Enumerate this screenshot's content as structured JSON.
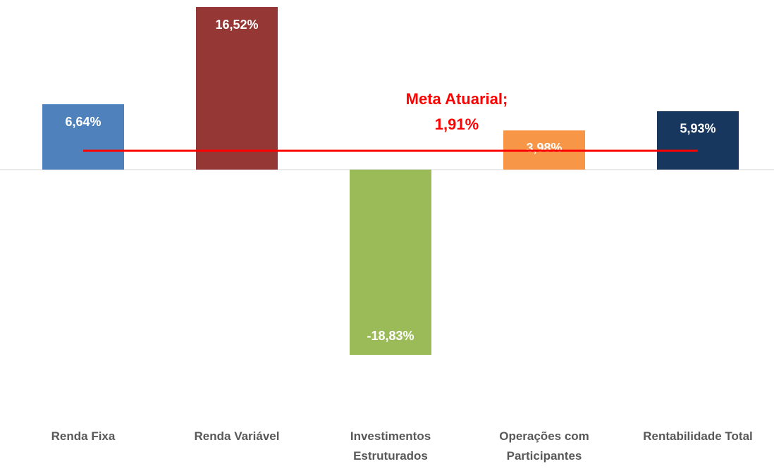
{
  "chart_data": {
    "type": "bar",
    "categories": [
      "Renda Fixa",
      "Renda Variável",
      "Investimentos Estruturados",
      "Operações com Participantes",
      "Rentabilidade Total"
    ],
    "values": [
      6.64,
      16.52,
      -18.83,
      3.98,
      5.93
    ],
    "value_labels": [
      "6,64%",
      "16,52%",
      "-18,83%",
      "3,98%",
      "5,93%"
    ],
    "colors": [
      "#4f81bd",
      "#953735",
      "#9bbb59",
      "#f79646",
      "#17375e"
    ],
    "target": {
      "label": "Meta Atuarial;",
      "value": 1.91,
      "value_label": "1,91%",
      "color": "#ff0000"
    }
  }
}
